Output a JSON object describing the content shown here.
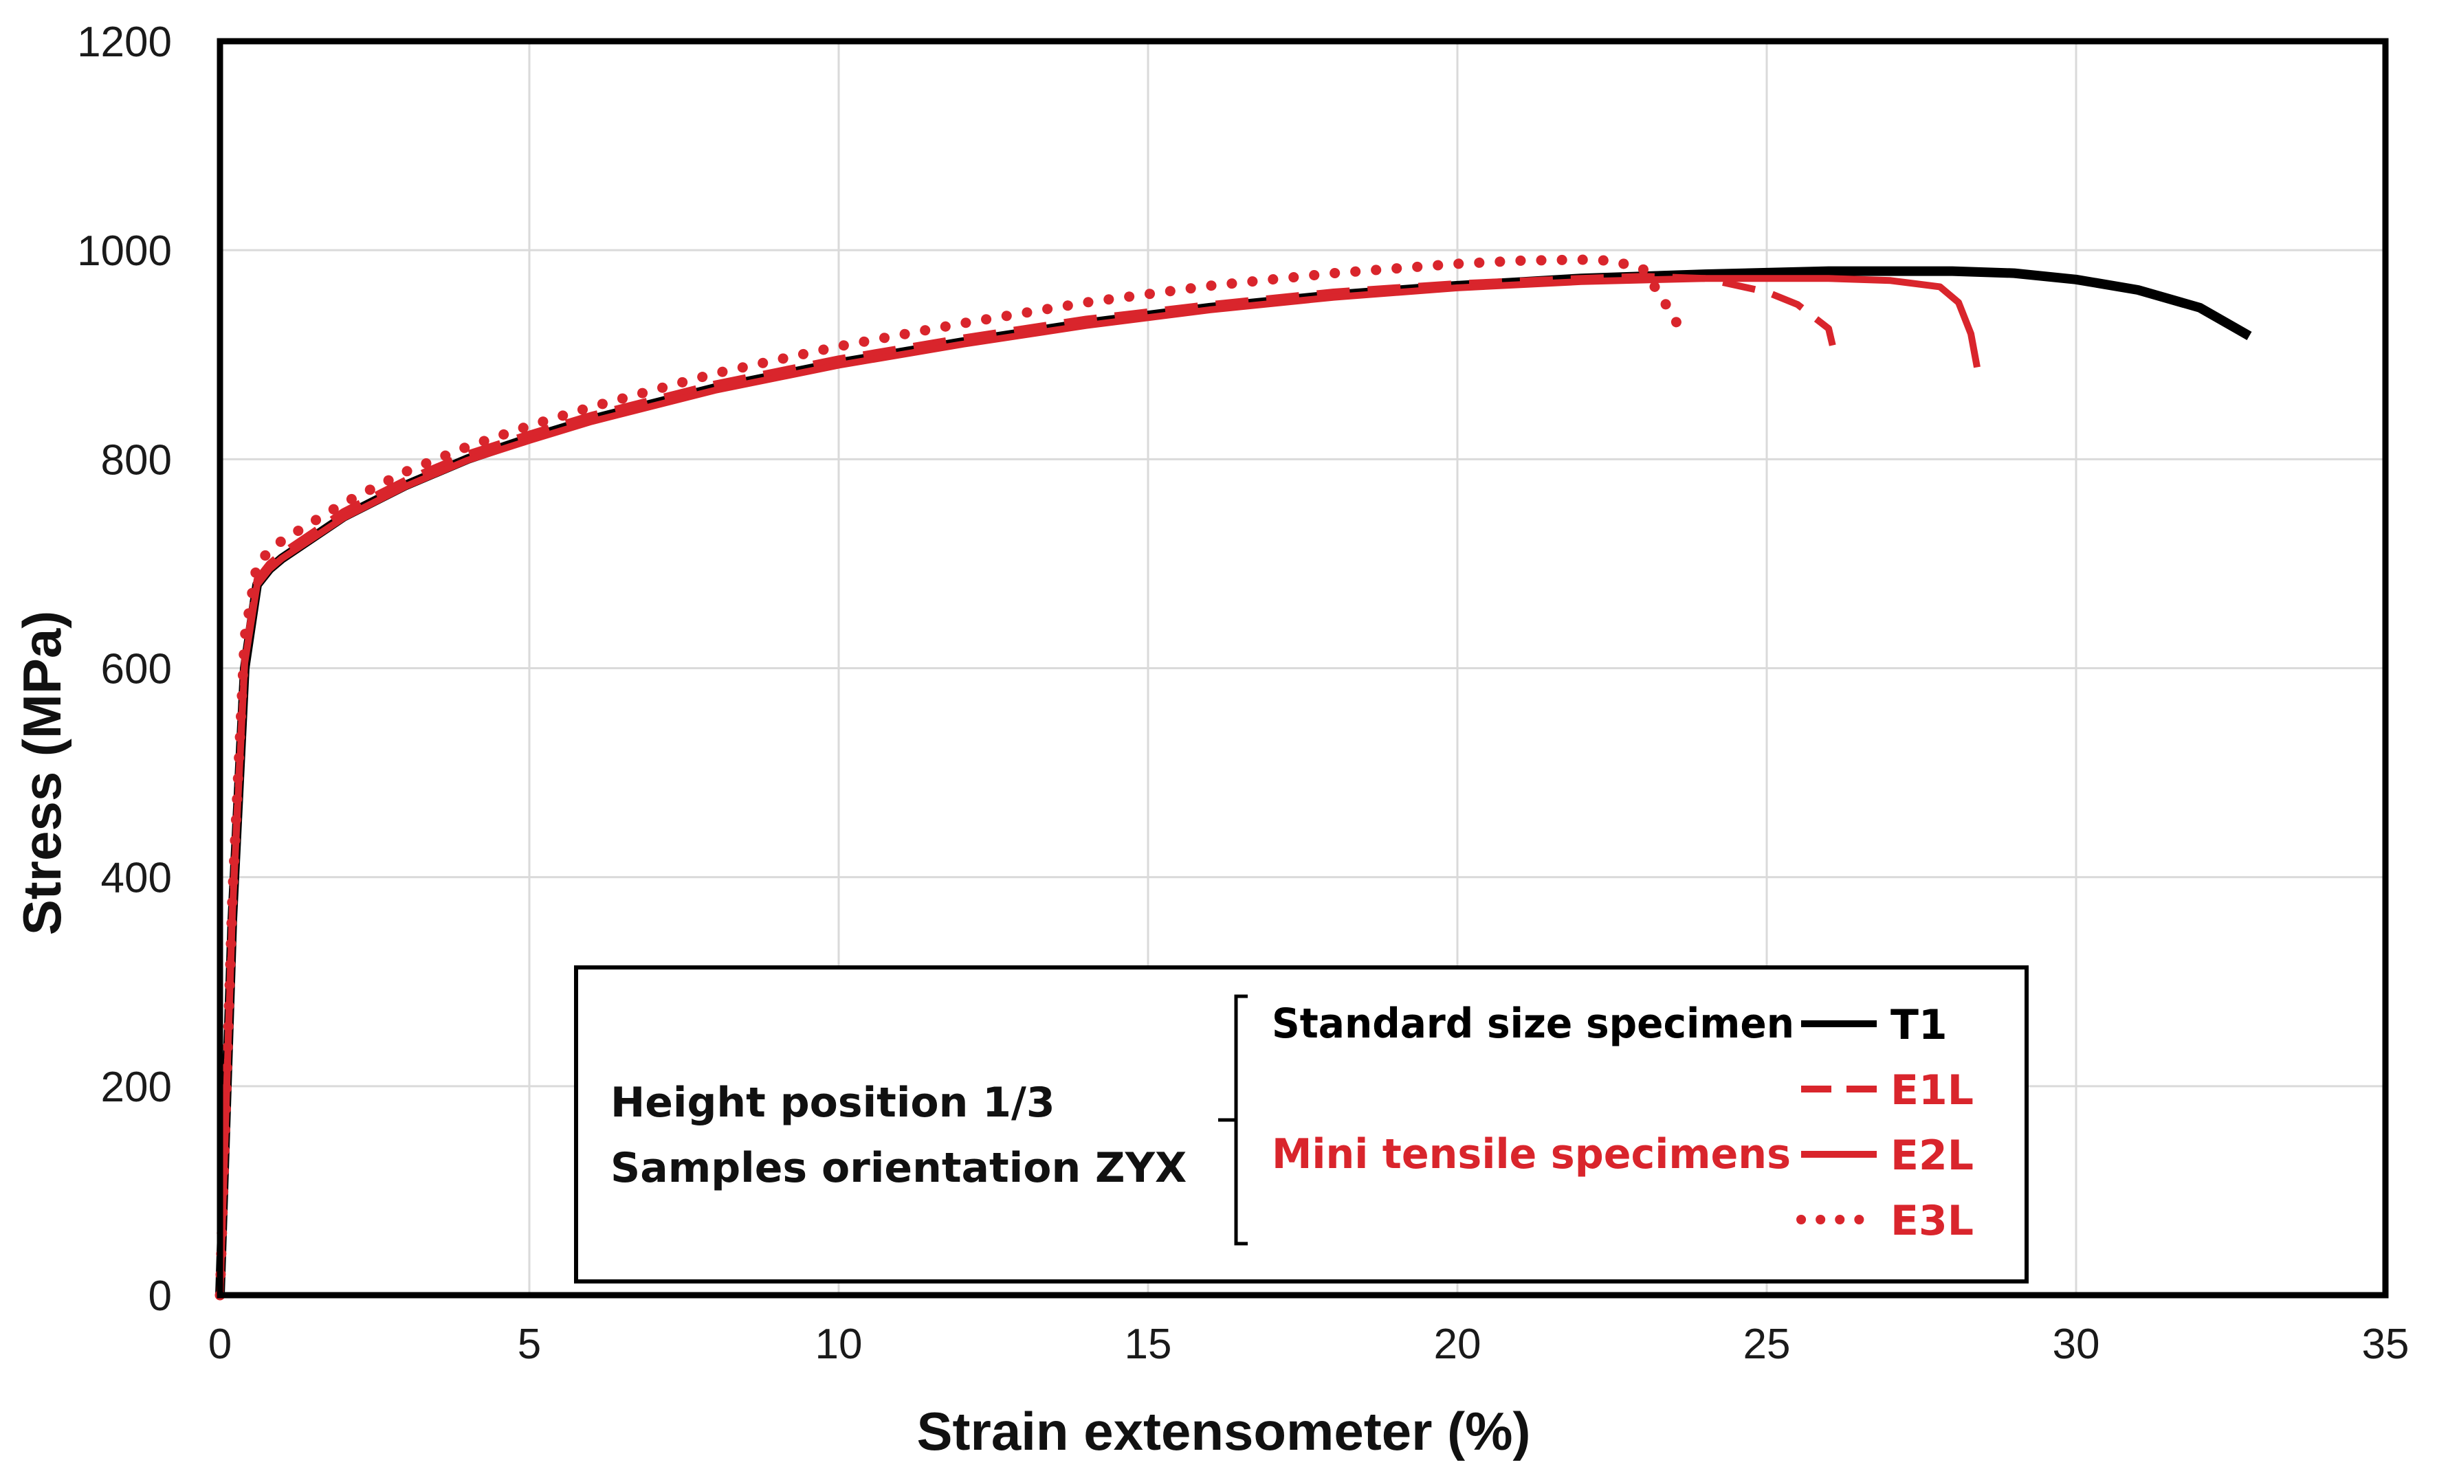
{
  "chart_data": {
    "type": "line",
    "title": "",
    "xlabel": "Strain extensometer (%)",
    "ylabel": "Stress (MPa)",
    "xlim": [
      0,
      35
    ],
    "ylim": [
      0,
      1200
    ],
    "xticks": [
      0,
      5,
      10,
      15,
      20,
      25,
      30,
      35
    ],
    "yticks": [
      0,
      200,
      400,
      600,
      800,
      1000,
      1200
    ],
    "grid": true,
    "legend": {
      "placement": "lower-right",
      "condition_lines": [
        "Height position 1/3",
        "Samples orientation ZYX"
      ],
      "group_standard": "Standard size specimen",
      "group_mini": "Mini tensile specimens"
    },
    "colors": {
      "standard": "#000000",
      "mini": "#d9252c",
      "grid": "#dadada",
      "frame": "#000000"
    },
    "series": [
      {
        "name": "T1",
        "group": "standard",
        "style": "solid",
        "x": [
          0,
          0.2,
          0.4,
          0.6,
          0.8,
          1,
          2,
          3,
          4,
          5,
          6,
          8,
          10,
          12,
          14,
          16,
          18,
          20,
          22,
          24,
          26,
          27,
          28,
          29,
          30,
          31,
          32,
          32.8
        ],
        "y": [
          0,
          360,
          600,
          680,
          695,
          705,
          745,
          775,
          800,
          820,
          838,
          868,
          892,
          912,
          930,
          945,
          957,
          966,
          973,
          977,
          980,
          980,
          980,
          978,
          972,
          962,
          945,
          918
        ]
      },
      {
        "name": "E1L",
        "group": "mini",
        "style": "dashed",
        "x": [
          0,
          0.2,
          0.4,
          0.6,
          0.8,
          1,
          2,
          3,
          4,
          5,
          6,
          8,
          10,
          12,
          14,
          16,
          18,
          20,
          22,
          23,
          24,
          25,
          25.5,
          26,
          26.1
        ],
        "y": [
          0,
          370,
          610,
          685,
          700,
          710,
          750,
          780,
          805,
          824,
          842,
          872,
          896,
          916,
          934,
          948,
          960,
          968,
          973,
          975,
          973,
          960,
          948,
          925,
          900
        ]
      },
      {
        "name": "E2L",
        "group": "mini",
        "style": "solid",
        "x": [
          0,
          0.2,
          0.4,
          0.6,
          0.8,
          1,
          2,
          3,
          4,
          5,
          6,
          8,
          10,
          12,
          14,
          16,
          18,
          20,
          22,
          24,
          26,
          27,
          27.8,
          28.1,
          28.3,
          28.4
        ],
        "y": [
          0,
          365,
          605,
          680,
          695,
          705,
          744,
          774,
          799,
          818,
          836,
          866,
          890,
          910,
          928,
          943,
          955,
          964,
          970,
          973,
          973,
          971,
          965,
          950,
          920,
          888
        ]
      },
      {
        "name": "E3L",
        "group": "mini",
        "style": "dotted",
        "x": [
          0,
          0.2,
          0.4,
          0.6,
          0.8,
          1,
          2,
          3,
          4,
          5,
          6,
          8,
          10,
          12,
          14,
          16,
          18,
          20,
          21,
          22,
          22.5,
          23,
          23.3,
          23.6
        ],
        "y": [
          0,
          380,
          630,
          700,
          712,
          722,
          758,
          788,
          812,
          832,
          850,
          882,
          908,
          930,
          950,
          966,
          978,
          987,
          990,
          991,
          990,
          982,
          955,
          925
        ]
      }
    ]
  }
}
